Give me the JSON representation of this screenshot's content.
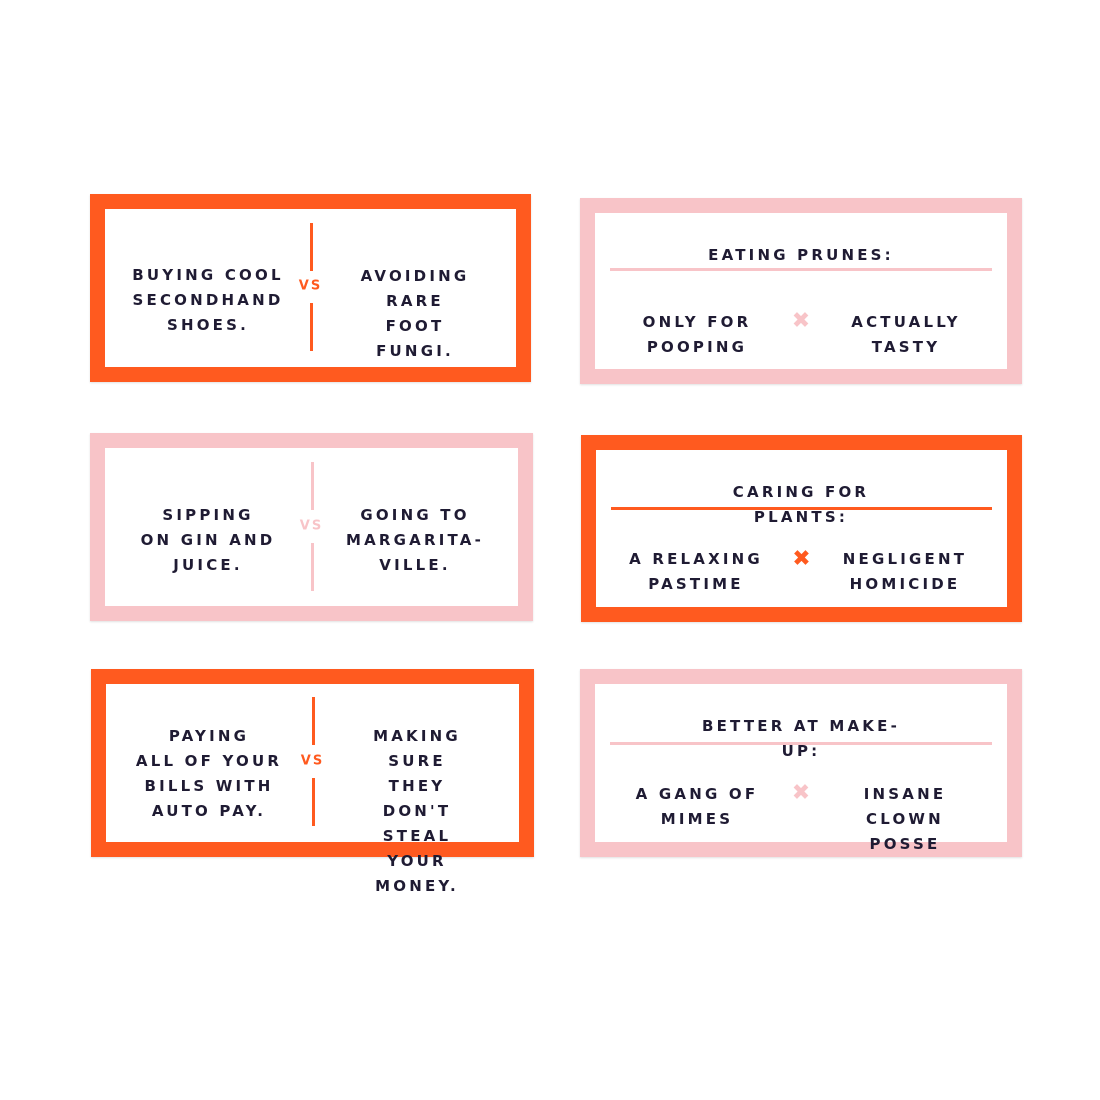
{
  "colors": {
    "orange": "#ff5a1f",
    "pink": "#f8c4c8",
    "text": "#1f1b33"
  },
  "cards": [
    {
      "style": "orange",
      "type": "versus",
      "left": "BUYING COOL\nSECONDHAND\nSHOES.",
      "separator": "VS",
      "right": "AVOIDING\nRARE FOOT\nFUNGI."
    },
    {
      "style": "pink",
      "type": "question",
      "title": "EATING PRUNES:",
      "left": "ONLY FOR\nPOOPING",
      "separator_icon": "x-icon",
      "right": "ACTUALLY\nTASTY"
    },
    {
      "style": "pink",
      "type": "versus",
      "left": "SIPPING\nON GIN AND\nJUICE.",
      "separator": "VS",
      "right": "GOING TO\nMARGARITA-\nVILLE."
    },
    {
      "style": "orange",
      "type": "question",
      "title": "CARING FOR PLANTS:",
      "left": "A RELAXING\nPASTIME",
      "separator_icon": "x-icon",
      "right": "NEGLIGENT\nHOMICIDE"
    },
    {
      "style": "orange",
      "type": "versus",
      "left": "PAYING\nALL OF YOUR\nBILLS WITH\nAUTO PAY.",
      "separator": "VS",
      "right": "MAKING\nSURE THEY\nDON'T STEAL\nYOUR MONEY."
    },
    {
      "style": "pink",
      "type": "question",
      "title": "BETTER AT MAKE-UP:",
      "left": "A GANG OF\nMIMES",
      "separator_icon": "x-icon",
      "right": "INSANE\nCLOWN POSSE"
    }
  ]
}
